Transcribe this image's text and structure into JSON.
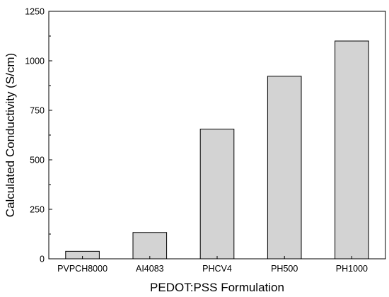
{
  "chart_data": {
    "type": "bar",
    "categories": [
      "PVPCH8000",
      "AI4083",
      "PHCV4",
      "PH500",
      "PH1000"
    ],
    "values": [
      38,
      133,
      655,
      922,
      1100
    ],
    "xlabel": "PEDOT:PSS Formulation",
    "ylabel": "Calculated Conductivity (S/cm)",
    "ylim": [
      0,
      1250
    ],
    "yticks": [
      0,
      250,
      500,
      750,
      1000,
      1250
    ],
    "grid": false,
    "bar_color": "#d3d3d3",
    "bar_edge_color": "#000000"
  }
}
